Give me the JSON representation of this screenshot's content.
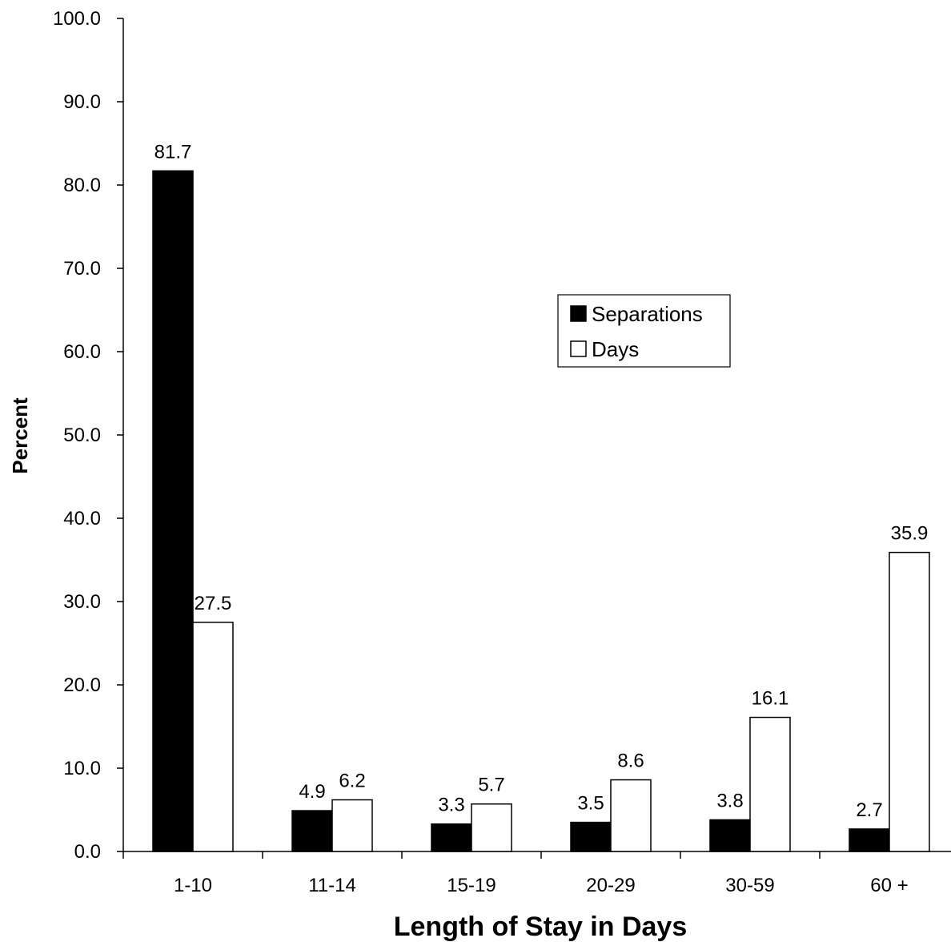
{
  "chart_data": {
    "type": "bar",
    "title": "",
    "xlabel": "Length of Stay in Days",
    "ylabel": "Percent",
    "ylim": [
      0,
      100
    ],
    "yticks": [
      0,
      10,
      20,
      30,
      40,
      50,
      60,
      70,
      80,
      90,
      100
    ],
    "ytick_labels": [
      "0.0",
      "10.0",
      "20.0",
      "30.0",
      "40.0",
      "50.0",
      "60.0",
      "70.0",
      "80.0",
      "90.0",
      "100.0"
    ],
    "categories": [
      "1-10",
      "11-14",
      "15-19",
      "20-29",
      "30-59",
      "60 +"
    ],
    "series": [
      {
        "name": "Separations",
        "values": [
          81.7,
          4.9,
          3.3,
          3.5,
          3.8,
          2.7
        ],
        "labels": [
          "81.7",
          "4.9",
          "3.3",
          "3.5",
          "3.8",
          "2.7"
        ],
        "color": "#000000"
      },
      {
        "name": "Days",
        "values": [
          27.5,
          6.2,
          5.7,
          8.6,
          16.1,
          35.9
        ],
        "labels": [
          "27.5",
          "6.2",
          "5.7",
          "8.6",
          "16.1",
          "35.9"
        ],
        "color": "#ffffff"
      }
    ],
    "grid": false,
    "legend": {
      "position": "center-right",
      "entries": [
        "Separations",
        "Days"
      ]
    }
  }
}
